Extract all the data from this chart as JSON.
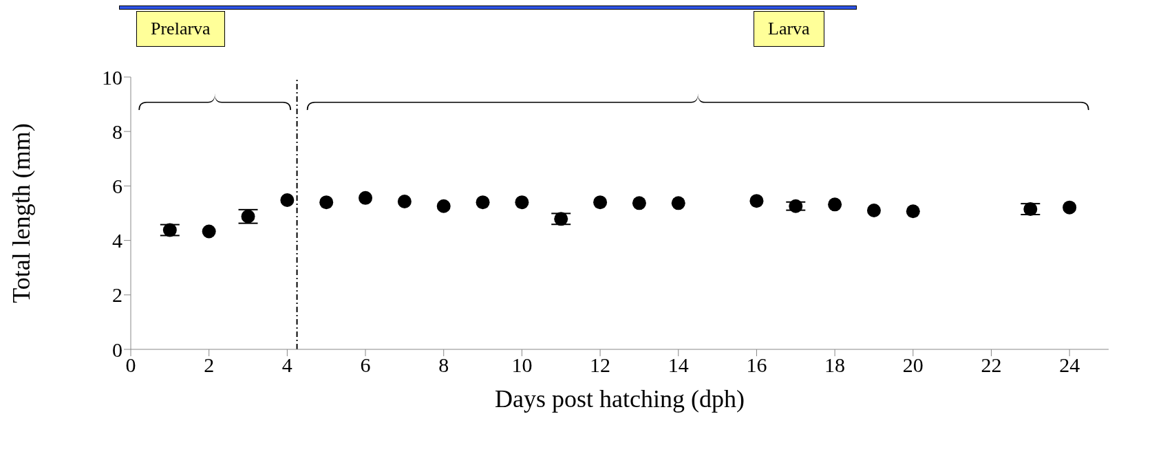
{
  "chart_data": {
    "type": "scatter",
    "xlabel": "Days post hatching (dph)",
    "ylabel": "Total length (mm)",
    "x": [
      1,
      2,
      3,
      4,
      5,
      6,
      7,
      8,
      9,
      10,
      11,
      12,
      13,
      14,
      16,
      17,
      18,
      19,
      20,
      23,
      24
    ],
    "values": [
      4.38,
      4.33,
      4.88,
      5.48,
      5.4,
      5.56,
      5.43,
      5.26,
      5.4,
      5.4,
      4.79,
      5.4,
      5.37,
      5.37,
      5.45,
      5.26,
      5.32,
      5.1,
      5.07,
      5.15,
      5.21
    ],
    "errors": [
      0.2,
      null,
      0.25,
      null,
      null,
      null,
      null,
      null,
      null,
      null,
      0.2,
      null,
      null,
      null,
      null,
      0.15,
      null,
      null,
      null,
      0.2,
      null
    ],
    "color": "#000000",
    "marker": "circle",
    "xlim": [
      0,
      25
    ],
    "xticks": [
      0,
      2,
      4,
      6,
      8,
      10,
      12,
      14,
      16,
      18,
      20,
      22,
      24
    ],
    "ylim": [
      0,
      10
    ],
    "yticks": [
      0,
      2,
      4,
      6,
      8,
      10
    ],
    "ref_lines": [
      {
        "axis": "x",
        "value": 4.25,
        "color": "#000000",
        "line_style": "dashdot"
      }
    ],
    "annotations": [
      "Prelarva",
      "Larva"
    ],
    "grid": false,
    "legend": false
  }
}
